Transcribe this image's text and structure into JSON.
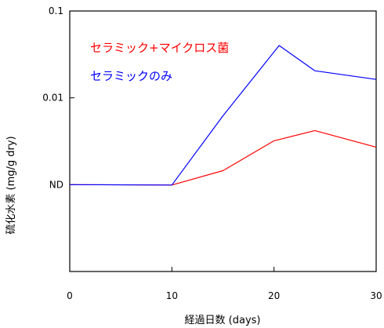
{
  "chart_data": {
    "type": "line",
    "xlabel": "経過日数 (days)",
    "ylabel": "硫化水素 (mg/g dry)",
    "xlim": [
      0,
      30
    ],
    "ylim": [
      0.0001,
      0.1
    ],
    "y_scale": "log",
    "x_ticks": [
      {
        "value": 0,
        "label": "0"
      },
      {
        "value": 10,
        "label": "10"
      },
      {
        "value": 20,
        "label": "20"
      },
      {
        "value": 30,
        "label": "30"
      }
    ],
    "y_ticks": [
      {
        "value": 0.1,
        "label": "0.1"
      },
      {
        "value": 0.01,
        "label": "0.01"
      },
      {
        "value": 0.001,
        "label": "ND"
      }
    ],
    "grid": false,
    "legend_position": "top-left",
    "series": [
      {
        "name": "セラミック+マイクロス菌",
        "color": "#ff0000",
        "x": [
          0,
          10,
          15,
          20,
          24,
          30
        ],
        "y": [
          0.001,
          0.00099,
          0.00145,
          0.0032,
          0.0042,
          0.0027
        ]
      },
      {
        "name": "セラミックのみ",
        "color": "#0000ff",
        "x": [
          0,
          10,
          15,
          20.5,
          24,
          30
        ],
        "y": [
          0.001,
          0.00099,
          0.0062,
          0.04,
          0.0205,
          0.0163
        ]
      }
    ]
  }
}
